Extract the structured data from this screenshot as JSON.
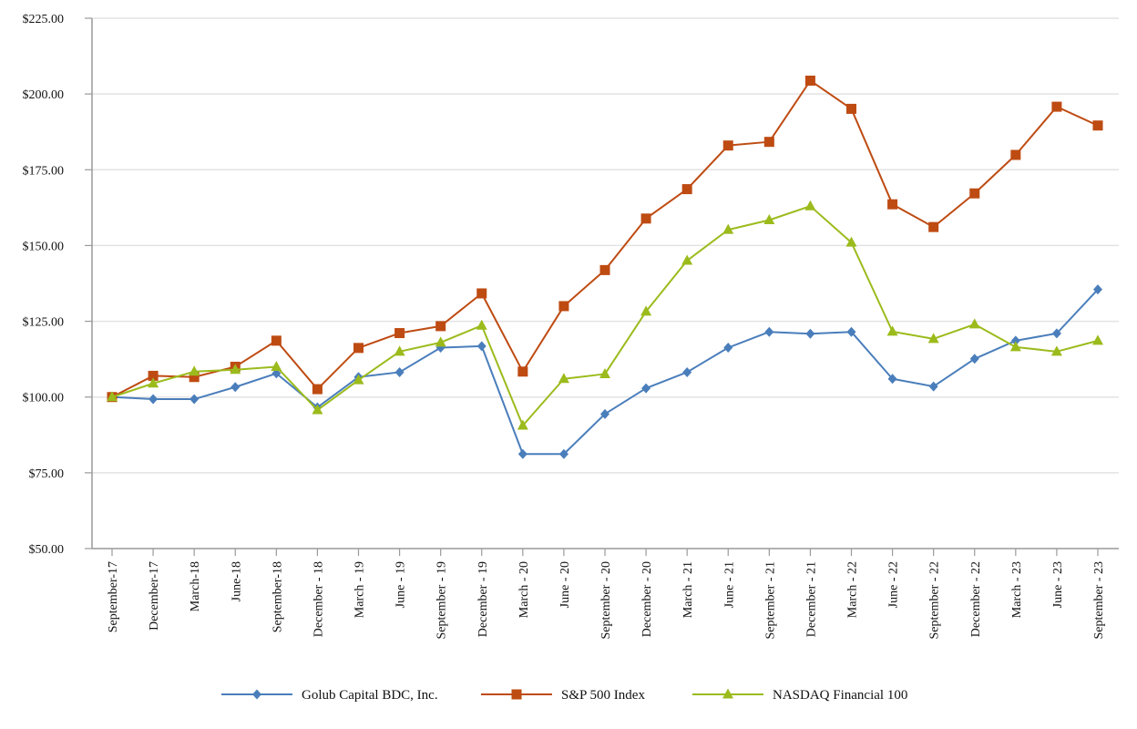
{
  "chart_data": {
    "type": "line",
    "title": "",
    "xlabel": "",
    "ylabel": "",
    "ylim": [
      50,
      225
    ],
    "y_tick_step": 25,
    "y_tick_labels": [
      "$50.00",
      "$75.00",
      "$100.00",
      "$125.00",
      "$150.00",
      "$175.00",
      "$200.00",
      "$225.00"
    ],
    "grid": true,
    "legend_position": "bottom-center",
    "categories": [
      "September-17",
      "December-17",
      "March-18",
      "June-18",
      "September-18",
      "December - 18",
      "March - 19",
      "June - 19",
      "September - 19",
      "December - 19",
      "March - 20",
      "June - 20",
      "September - 20",
      "December - 20",
      "March - 21",
      "June - 21",
      "September - 21",
      "December - 21",
      "March - 22",
      "June - 22",
      "September - 22",
      "December - 22",
      "March - 23",
      "June - 23",
      "September - 23"
    ],
    "series": [
      {
        "name": "Golub Capital BDC, Inc.",
        "color": "#4a7ebb",
        "marker": "diamond",
        "values": [
          100.0,
          99.3,
          99.3,
          103.3,
          107.8,
          96.6,
          106.6,
          108.2,
          116.3,
          116.8,
          81.2,
          81.2,
          94.4,
          102.9,
          108.2,
          116.3,
          121.5,
          120.9,
          121.5,
          106.0,
          103.5,
          112.6,
          118.6,
          121.0,
          135.5
        ]
      },
      {
        "name": "S&P 500 Index",
        "color": "#be4b12",
        "marker": "square",
        "values": [
          100.0,
          107.0,
          106.6,
          110.0,
          118.6,
          102.6,
          116.2,
          121.1,
          123.4,
          134.2,
          108.4,
          130.0,
          141.9,
          158.9,
          168.6,
          183.0,
          184.2,
          204.4,
          195.1,
          163.6,
          156.1,
          167.2,
          179.9,
          195.8,
          189.6
        ]
      },
      {
        "name": "NASDAQ Financial 100",
        "color": "#9bbb1c",
        "marker": "triangle",
        "values": [
          100.0,
          104.5,
          108.4,
          109.0,
          110.0,
          95.7,
          105.6,
          115.0,
          118.0,
          123.6,
          90.6,
          106.0,
          107.6,
          128.2,
          145.0,
          155.2,
          158.4,
          163.0,
          151.0,
          121.6,
          119.2,
          124.0,
          116.5,
          115.0,
          118.6
        ]
      }
    ]
  }
}
